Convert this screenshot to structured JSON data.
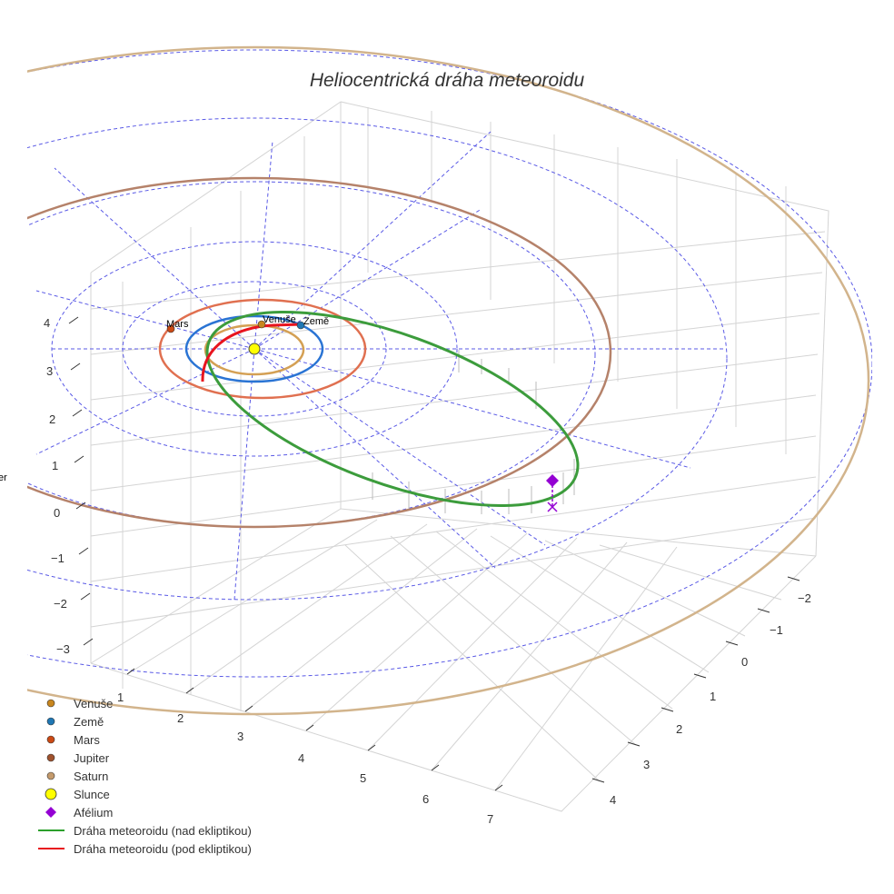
{
  "chart_data": {
    "type": "scatter3d",
    "title": "Heliocentrická dráha meteoroidu",
    "axes": {
      "x": {
        "ticks": [
          "1",
          "2",
          "3",
          "4",
          "5",
          "6",
          "7"
        ]
      },
      "y": {
        "ticks": [
          "−2",
          "−1",
          "0",
          "1",
          "2",
          "3",
          "4"
        ]
      },
      "z": {
        "ticks": [
          "4",
          "3",
          "2",
          "1",
          "0",
          "−1",
          "−2",
          "−3"
        ]
      }
    },
    "planet_labels": [
      "Mars",
      "Venuše",
      "Země",
      "er"
    ],
    "legend": [
      {
        "name": "Venuše",
        "symbol": "circle",
        "color": "#c8861e"
      },
      {
        "name": "Země",
        "symbol": "circle",
        "color": "#1f77b4"
      },
      {
        "name": "Mars",
        "symbol": "circle",
        "color": "#cc4a14"
      },
      {
        "name": "Jupiter",
        "symbol": "circle",
        "color": "#a0522d"
      },
      {
        "name": "Saturn",
        "symbol": "circle",
        "color": "#c49a6c"
      },
      {
        "name": "Slunce",
        "symbol": "circle",
        "color": "#ffff00"
      },
      {
        "name": "Afélium",
        "symbol": "diamond",
        "color": "#9400d3"
      },
      {
        "name": "Dráha meteoroidu (nad ekliptikou)",
        "symbol": "line",
        "color": "#2ca02c"
      },
      {
        "name": "Dráha meteoroidu (pod ekliptikou)",
        "symbol": "line",
        "color": "#e8141e"
      }
    ],
    "orbit_colors": {
      "venus": "#d4a054",
      "earth": "#2a74d4",
      "mars": "#e07050",
      "jupiter": "#b5826a",
      "saturn": "#d2b48c"
    },
    "legend_placement": "bottom-left"
  }
}
